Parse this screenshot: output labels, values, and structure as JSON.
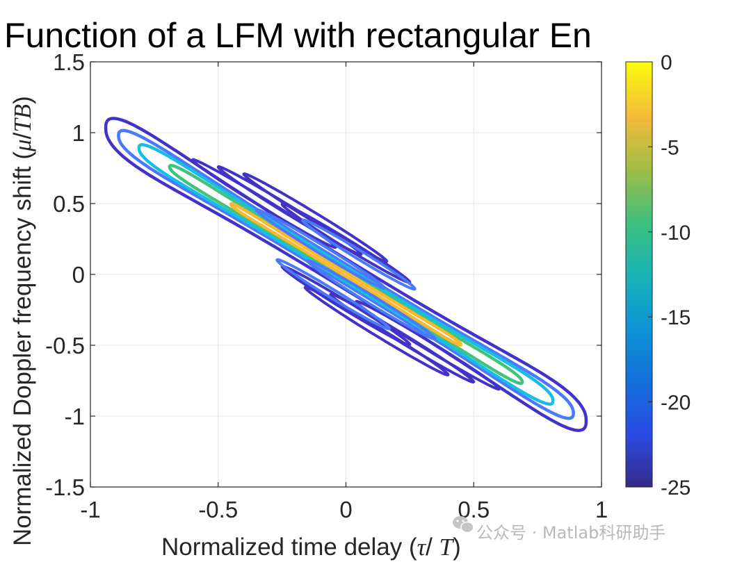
{
  "chart_data": {
    "type": "contour",
    "title": "Function of a LFM with rectangular En",
    "xlabel": {
      "prefix": "Normalized time delay (",
      "var1": "τ",
      "sep": "/ ",
      "var2": "T",
      "suffix": ")"
    },
    "ylabel": {
      "prefix": "Normalized Doppler frequency shift (",
      "var1": "μ",
      "sep": "/",
      "var2": "TB",
      "suffix": ")"
    },
    "xlim": [
      -1,
      1
    ],
    "ylim": [
      -1.5,
      1.5
    ],
    "xticks": [
      -1,
      -0.5,
      0,
      0.5,
      1
    ],
    "xtick_labels": [
      "-1",
      "-0.5",
      "0",
      "0.5",
      "1"
    ],
    "yticks": [
      -1.5,
      -1,
      -0.5,
      0,
      0.5,
      1,
      1.5
    ],
    "ytick_labels": [
      "-1.5",
      "-1",
      "-0.5",
      "0",
      "0.5",
      "1",
      "1.5"
    ],
    "grid": true,
    "colormap": "parula",
    "colorbar": {
      "limits": [
        -25,
        0
      ],
      "ticks": [
        0,
        -5,
        -10,
        -15,
        -20,
        -25
      ],
      "tick_labels": [
        "0",
        "-5",
        "-10",
        "-15",
        "-20",
        "-25"
      ]
    },
    "levels": [
      {
        "level": -3,
        "color": "#f9b832",
        "half_width": 0.45,
        "half_height": 0.16,
        "center": [
          0,
          0
        ]
      },
      {
        "level": -10,
        "color": "#3fc37d",
        "half_width": 0.69,
        "half_height": 0.34,
        "center": [
          0,
          0
        ]
      },
      {
        "level": -15,
        "color": "#18bde3",
        "half_width": 0.81,
        "half_height": 0.62,
        "center": [
          0,
          0
        ]
      },
      {
        "level": -20,
        "color": "#4b79fb",
        "half_width": 0.89,
        "half_height": 0.84,
        "center": [
          0,
          0
        ]
      },
      {
        "level": -25,
        "color": "#4233c8",
        "half_width": 0.94,
        "half_height": 1.27,
        "center": [
          0,
          0
        ]
      }
    ],
    "sidelobes": [
      {
        "level": -25,
        "color": "#4233c8",
        "center": [
          -0.32,
          0.5
        ],
        "length": 0.56
      },
      {
        "level": -25,
        "color": "#4233c8",
        "center": [
          -0.22,
          0.45
        ],
        "length": 0.56
      },
      {
        "level": -25,
        "color": "#4233c8",
        "center": [
          -0.12,
          0.4
        ],
        "length": 0.56
      },
      {
        "level": -20,
        "color": "#4b79fb",
        "center": [
          -0.1,
          0.18
        ],
        "length": 0.5
      },
      {
        "level": -25,
        "color": "#4233c8",
        "center": [
          0.0,
          0.22
        ],
        "length": 0.5
      },
      {
        "level": -20,
        "color": "#4b79fb",
        "center": [
          0.05,
          0.14
        ],
        "length": 0.44
      },
      {
        "level": -25,
        "color": "#4233c8",
        "center": [
          0.32,
          -0.5
        ],
        "length": 0.56
      },
      {
        "level": -25,
        "color": "#4233c8",
        "center": [
          0.22,
          -0.45
        ],
        "length": 0.56
      },
      {
        "level": -25,
        "color": "#4233c8",
        "center": [
          0.12,
          -0.4
        ],
        "length": 0.56
      },
      {
        "level": -20,
        "color": "#4b79fb",
        "center": [
          0.1,
          -0.18
        ],
        "length": 0.5
      },
      {
        "level": -25,
        "color": "#4233c8",
        "center": [
          0.0,
          -0.22
        ],
        "length": 0.5
      },
      {
        "level": -20,
        "color": "#4b79fb",
        "center": [
          -0.05,
          -0.14
        ],
        "length": 0.44
      }
    ]
  },
  "watermark": {
    "icon": "wechat-icon",
    "text": "公众号 · Matlab科研助手"
  }
}
